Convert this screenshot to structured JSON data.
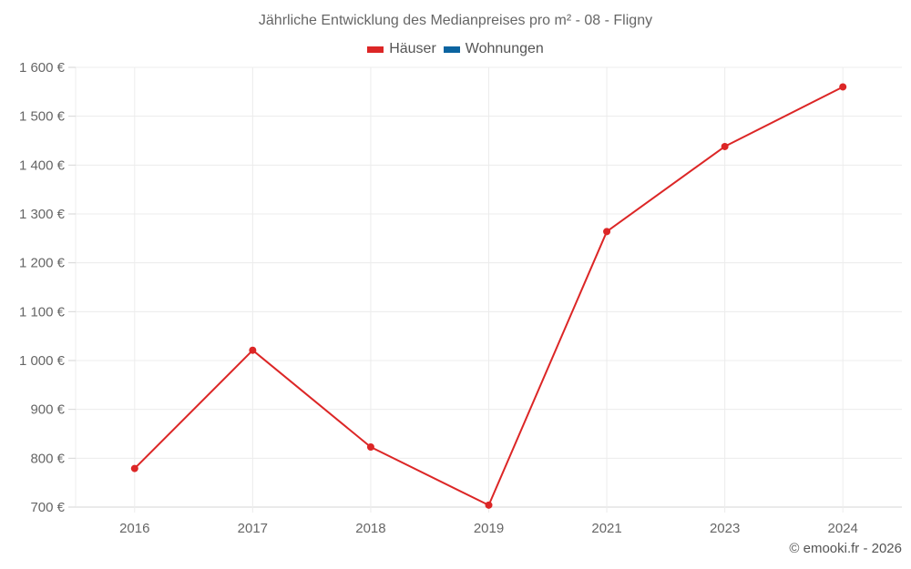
{
  "title": "Jährliche Entwicklung des Medianpreises pro m² - 08 - Fligny",
  "legend": [
    {
      "label": "Häuser",
      "color": "#dc2626"
    },
    {
      "label": "Wohnungen",
      "color": "#0b64a0"
    }
  ],
  "credit": "© emooki.fr - 2026",
  "chart_data": {
    "type": "line",
    "title": "Jährliche Entwicklung des Medianpreises pro m² - 08 - Fligny",
    "xlabel": "",
    "ylabel": "",
    "categories": [
      "2016",
      "2017",
      "2018",
      "2019",
      "2021",
      "2023",
      "2024"
    ],
    "series": [
      {
        "name": "Häuser",
        "color": "#dc2626",
        "values": [
          779,
          1021,
          823,
          704,
          1264,
          1438,
          1560
        ]
      },
      {
        "name": "Wohnungen",
        "color": "#0b64a0",
        "values": []
      }
    ],
    "ylim": [
      700,
      1600
    ],
    "yticks": [
      700,
      800,
      900,
      1000,
      1100,
      1200,
      1300,
      1400,
      1500,
      1600
    ],
    "ytick_labels": [
      "700 €",
      "800 €",
      "900 €",
      "1 000 €",
      "1 100 €",
      "1 200 €",
      "1 300 €",
      "1 400 €",
      "1 500 €",
      "1 600 €"
    ],
    "grid": true,
    "legend_position": "top"
  }
}
